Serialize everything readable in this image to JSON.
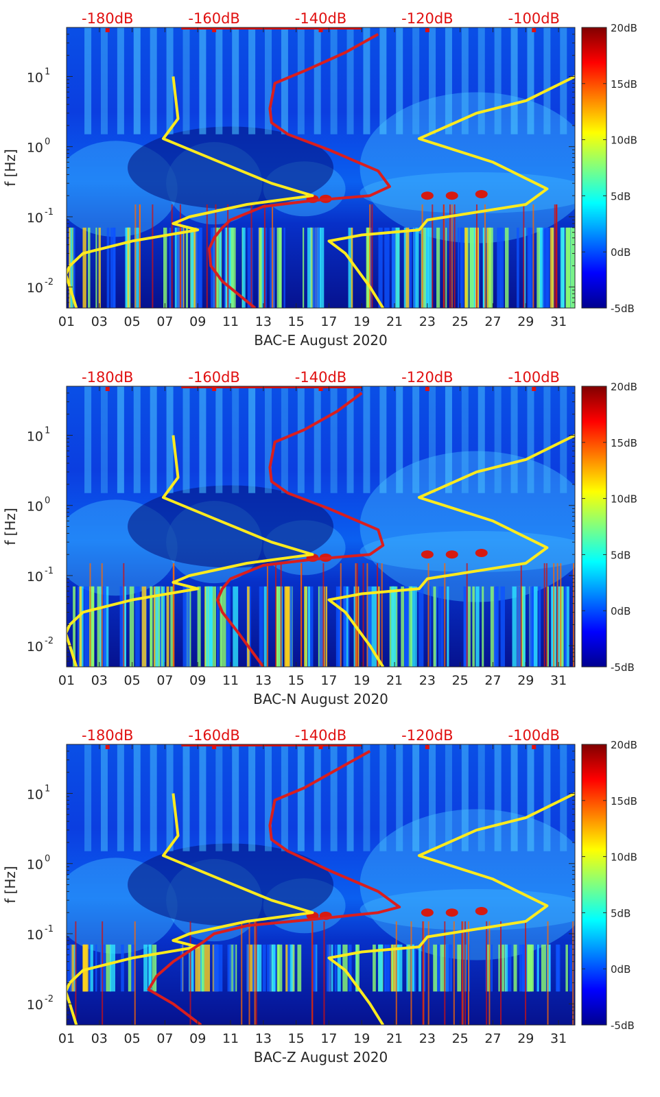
{
  "colors": {
    "colormap": [
      "#00008f",
      "#0000ff",
      "#0080ff",
      "#00ffff",
      "#80ff80",
      "#ffff00",
      "#ff8000",
      "#ff0000",
      "#800000"
    ],
    "yellow_curve": "#ffeb1e",
    "red_curve": "#d91e1e",
    "top_axis_text": "#e01010"
  },
  "chart_data": [
    {
      "type": "heatmap",
      "name": "BAC-E",
      "xlabel": "BAC-E August 2020",
      "ylabel": "f [Hz]",
      "x_ticks": [
        "01",
        "03",
        "05",
        "07",
        "09",
        "11",
        "13",
        "15",
        "17",
        "19",
        "21",
        "23",
        "25",
        "27",
        "29",
        "31"
      ],
      "xlim": [
        1,
        32
      ],
      "y_scale": "log",
      "ylim": [
        0.005,
        50
      ],
      "y_ticks": [
        {
          "value": 0.01,
          "base": "10",
          "exp": "-2"
        },
        {
          "value": 0.1,
          "base": "10",
          "exp": "-1"
        },
        {
          "value": 1,
          "base": "10",
          "exp": "0"
        },
        {
          "value": 10,
          "base": "10",
          "exp": "1"
        }
      ],
      "top_ticks": [
        {
          "label": "-180dB",
          "x": 3.5
        },
        {
          "label": "-160dB",
          "x": 10
        },
        {
          "label": "-140dB",
          "x": 16.5
        },
        {
          "label": "-120dB",
          "x": 23
        },
        {
          "label": "-100dB",
          "x": 29.5
        }
      ],
      "colorbar": {
        "min": -5,
        "max": 20,
        "ticks": [
          "20dB",
          "15dB",
          "10dB",
          "5dB",
          "0dB",
          "-5dB"
        ]
      },
      "yellow_curve": [
        [
          7.5,
          10
        ],
        [
          7.8,
          2.5
        ],
        [
          6.9,
          1.3
        ],
        [
          10,
          0.65
        ],
        [
          13.5,
          0.3
        ],
        [
          16,
          0.2
        ],
        [
          12,
          0.15
        ],
        [
          8.5,
          0.1
        ],
        [
          7.5,
          0.08
        ],
        [
          9,
          0.065
        ],
        [
          5,
          0.045
        ],
        [
          2,
          0.03
        ],
        [
          1.2,
          0.02
        ],
        [
          0.95,
          0.015
        ],
        [
          1.2,
          0.01
        ],
        [
          1.6,
          0.005
        ]
      ],
      "yellow_curve_right": [
        [
          32,
          10
        ],
        [
          29,
          4.5
        ],
        [
          26,
          3
        ],
        [
          22.5,
          1.3
        ],
        [
          27,
          0.6
        ],
        [
          30.3,
          0.25
        ],
        [
          29,
          0.15
        ],
        [
          23,
          0.09
        ],
        [
          22.5,
          0.065
        ],
        [
          19,
          0.055
        ],
        [
          17,
          0.045
        ],
        [
          18,
          0.03
        ],
        [
          19.5,
          0.01
        ],
        [
          20.3,
          0.005
        ]
      ],
      "red_curve": [
        [
          20,
          40
        ],
        [
          18,
          22
        ],
        [
          15.5,
          12
        ],
        [
          13.7,
          8
        ],
        [
          13.4,
          3.5
        ],
        [
          13.5,
          2.2
        ],
        [
          14.5,
          1.5
        ],
        [
          17,
          0.9
        ],
        [
          20,
          0.45
        ],
        [
          20.7,
          0.27
        ],
        [
          19.5,
          0.2
        ],
        [
          16,
          0.17
        ],
        [
          13,
          0.14
        ],
        [
          11,
          0.09
        ],
        [
          10.5,
          0.07
        ],
        [
          10,
          0.05
        ],
        [
          9.7,
          0.035
        ],
        [
          9.8,
          0.02
        ],
        [
          10.5,
          0.012
        ],
        [
          12.5,
          0.005
        ]
      ]
    },
    {
      "type": "heatmap",
      "name": "BAC-N",
      "xlabel": "BAC-N August 2020",
      "ylabel": "f [Hz]",
      "x_ticks": [
        "01",
        "03",
        "05",
        "07",
        "09",
        "11",
        "13",
        "15",
        "17",
        "19",
        "21",
        "23",
        "25",
        "27",
        "29",
        "31"
      ],
      "xlim": [
        1,
        32
      ],
      "y_scale": "log",
      "ylim": [
        0.005,
        50
      ],
      "y_ticks": [
        {
          "value": 0.01,
          "base": "10",
          "exp": "-2"
        },
        {
          "value": 0.1,
          "base": "10",
          "exp": "-1"
        },
        {
          "value": 1,
          "base": "10",
          "exp": "0"
        },
        {
          "value": 10,
          "base": "10",
          "exp": "1"
        }
      ],
      "top_ticks": [
        {
          "label": "-180dB",
          "x": 3.5
        },
        {
          "label": "-160dB",
          "x": 10
        },
        {
          "label": "-140dB",
          "x": 16.5
        },
        {
          "label": "-120dB",
          "x": 23
        },
        {
          "label": "-100dB",
          "x": 29.5
        }
      ],
      "colorbar": {
        "min": -5,
        "max": 20,
        "ticks": [
          "20dB",
          "15dB",
          "10dB",
          "5dB",
          "0dB",
          "-5dB"
        ]
      },
      "yellow_curve": [
        [
          7.5,
          10
        ],
        [
          7.8,
          2.5
        ],
        [
          6.9,
          1.3
        ],
        [
          10,
          0.65
        ],
        [
          13.5,
          0.3
        ],
        [
          16,
          0.2
        ],
        [
          12,
          0.15
        ],
        [
          8.5,
          0.1
        ],
        [
          7.5,
          0.08
        ],
        [
          9,
          0.065
        ],
        [
          5,
          0.045
        ],
        [
          2,
          0.03
        ],
        [
          1.2,
          0.02
        ],
        [
          0.95,
          0.015
        ],
        [
          1.2,
          0.01
        ],
        [
          1.6,
          0.005
        ]
      ],
      "yellow_curve_right": [
        [
          32,
          10
        ],
        [
          29,
          4.5
        ],
        [
          26,
          3
        ],
        [
          22.5,
          1.3
        ],
        [
          27,
          0.6
        ],
        [
          30.3,
          0.25
        ],
        [
          29,
          0.15
        ],
        [
          23,
          0.09
        ],
        [
          22.5,
          0.065
        ],
        [
          19,
          0.055
        ],
        [
          17,
          0.045
        ],
        [
          18,
          0.03
        ],
        [
          19.5,
          0.01
        ],
        [
          20.3,
          0.005
        ]
      ],
      "red_curve": [
        [
          19,
          40
        ],
        [
          17.5,
          22
        ],
        [
          15.5,
          12
        ],
        [
          13.7,
          8
        ],
        [
          13.4,
          3.5
        ],
        [
          13.5,
          2.2
        ],
        [
          14.5,
          1.5
        ],
        [
          17,
          0.9
        ],
        [
          20,
          0.45
        ],
        [
          20.3,
          0.27
        ],
        [
          19.5,
          0.2
        ],
        [
          16,
          0.17
        ],
        [
          13,
          0.14
        ],
        [
          11,
          0.09
        ],
        [
          10.5,
          0.065
        ],
        [
          10.2,
          0.045
        ],
        [
          10.5,
          0.03
        ],
        [
          11.5,
          0.015
        ],
        [
          13,
          0.005
        ]
      ]
    },
    {
      "type": "heatmap",
      "name": "BAC-Z",
      "xlabel": "BAC-Z August 2020",
      "ylabel": "f [Hz]",
      "x_ticks": [
        "01",
        "03",
        "05",
        "07",
        "09",
        "11",
        "13",
        "15",
        "17",
        "19",
        "21",
        "23",
        "25",
        "27",
        "29",
        "31"
      ],
      "xlim": [
        1,
        32
      ],
      "y_scale": "log",
      "ylim": [
        0.005,
        50
      ],
      "y_ticks": [
        {
          "value": 0.01,
          "base": "10",
          "exp": "-2"
        },
        {
          "value": 0.1,
          "base": "10",
          "exp": "-1"
        },
        {
          "value": 1,
          "base": "10",
          "exp": "0"
        },
        {
          "value": 10,
          "base": "10",
          "exp": "1"
        }
      ],
      "top_ticks": [
        {
          "label": "-180dB",
          "x": 3.5
        },
        {
          "label": "-160dB",
          "x": 10
        },
        {
          "label": "-140dB",
          "x": 16.5
        },
        {
          "label": "-120dB",
          "x": 23
        },
        {
          "label": "-100dB",
          "x": 29.5
        }
      ],
      "colorbar": {
        "min": -5,
        "max": 20,
        "ticks": [
          "20dB",
          "15dB",
          "10dB",
          "5dB",
          "0dB",
          "-5dB"
        ]
      },
      "yellow_curve": [
        [
          7.5,
          10
        ],
        [
          7.8,
          2.5
        ],
        [
          6.9,
          1.3
        ],
        [
          10,
          0.65
        ],
        [
          13.5,
          0.3
        ],
        [
          16,
          0.2
        ],
        [
          12,
          0.15
        ],
        [
          8.5,
          0.1
        ],
        [
          7.5,
          0.08
        ],
        [
          9,
          0.065
        ],
        [
          5,
          0.045
        ],
        [
          2,
          0.03
        ],
        [
          1.2,
          0.02
        ],
        [
          0.95,
          0.015
        ],
        [
          1.2,
          0.01
        ],
        [
          1.6,
          0.005
        ]
      ],
      "yellow_curve_right": [
        [
          32,
          10
        ],
        [
          29,
          4.5
        ],
        [
          26,
          3
        ],
        [
          22.5,
          1.3
        ],
        [
          27,
          0.6
        ],
        [
          30.3,
          0.25
        ],
        [
          29,
          0.15
        ],
        [
          23,
          0.09
        ],
        [
          22.5,
          0.065
        ],
        [
          19,
          0.055
        ],
        [
          17,
          0.045
        ],
        [
          18,
          0.03
        ],
        [
          19.5,
          0.01
        ],
        [
          20.3,
          0.005
        ]
      ],
      "red_curve": [
        [
          19.5,
          40
        ],
        [
          17.5,
          22
        ],
        [
          15.5,
          12
        ],
        [
          13.7,
          8
        ],
        [
          13.4,
          3.5
        ],
        [
          13.5,
          2.2
        ],
        [
          14.5,
          1.5
        ],
        [
          17,
          0.8
        ],
        [
          20,
          0.4
        ],
        [
          21.3,
          0.24
        ],
        [
          20,
          0.2
        ],
        [
          16,
          0.16
        ],
        [
          12,
          0.13
        ],
        [
          10,
          0.1
        ],
        [
          9.3,
          0.075
        ],
        [
          7.5,
          0.04
        ],
        [
          6.5,
          0.025
        ],
        [
          6,
          0.016
        ],
        [
          7.5,
          0.01
        ],
        [
          9.2,
          0.005
        ]
      ]
    }
  ]
}
